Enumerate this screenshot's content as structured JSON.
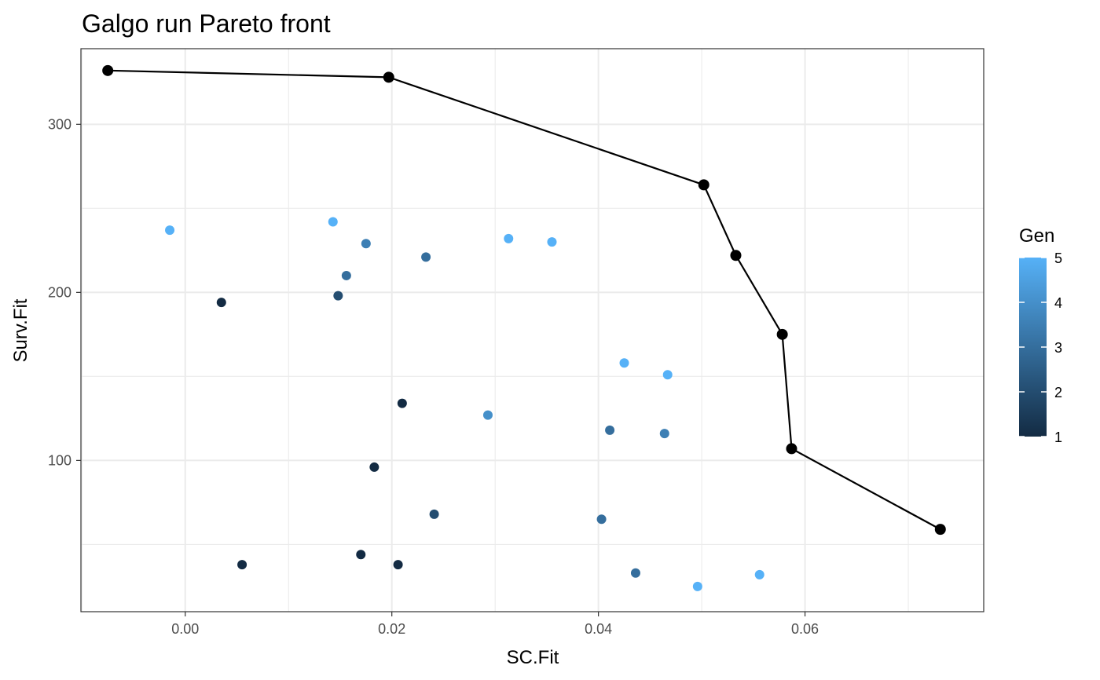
{
  "chart_data": {
    "type": "scatter",
    "title": "Galgo run Pareto front",
    "xlabel": "SC.Fit",
    "ylabel": "Surv.Fit",
    "xlim": [
      -0.0101,
      0.0773
    ],
    "ylim": [
      10,
      345
    ],
    "x_ticks": [
      0.0,
      0.02,
      0.04,
      0.06
    ],
    "x_tick_labels": [
      "0.00",
      "0.02",
      "0.04",
      "0.06"
    ],
    "y_ticks": [
      100,
      200,
      300
    ],
    "y_tick_labels": [
      "100",
      "200",
      "300"
    ],
    "grid": true,
    "legend": {
      "title": "Gen",
      "position": "right",
      "type": "colorbar",
      "range": [
        1,
        5
      ],
      "ticks": [
        "1",
        "2",
        "3",
        "4",
        "5"
      ],
      "low_color": "#132b43",
      "high_color": "#56b1f7"
    },
    "series": [
      {
        "type": "scatter",
        "points": [
          {
            "x": -0.0015,
            "y": 237,
            "gen": 5
          },
          {
            "x": 0.0035,
            "y": 194,
            "gen": 1
          },
          {
            "x": 0.0055,
            "y": 38,
            "gen": 1
          },
          {
            "x": 0.0143,
            "y": 242,
            "gen": 5
          },
          {
            "x": 0.0148,
            "y": 198,
            "gen": 2
          },
          {
            "x": 0.0156,
            "y": 210,
            "gen": 3
          },
          {
            "x": 0.017,
            "y": 44,
            "gen": 1
          },
          {
            "x": 0.0175,
            "y": 229,
            "gen": 3.5
          },
          {
            "x": 0.0183,
            "y": 96,
            "gen": 1
          },
          {
            "x": 0.0206,
            "y": 38,
            "gen": 1
          },
          {
            "x": 0.021,
            "y": 134,
            "gen": 1
          },
          {
            "x": 0.0233,
            "y": 221,
            "gen": 3
          },
          {
            "x": 0.0241,
            "y": 68,
            "gen": 2
          },
          {
            "x": 0.0293,
            "y": 127,
            "gen": 4
          },
          {
            "x": 0.0313,
            "y": 232,
            "gen": 5
          },
          {
            "x": 0.0355,
            "y": 230,
            "gen": 5
          },
          {
            "x": 0.0403,
            "y": 65,
            "gen": 3
          },
          {
            "x": 0.0411,
            "y": 118,
            "gen": 3
          },
          {
            "x": 0.0425,
            "y": 158,
            "gen": 5
          },
          {
            "x": 0.0436,
            "y": 33,
            "gen": 3
          },
          {
            "x": 0.0464,
            "y": 116,
            "gen": 3.5
          },
          {
            "x": 0.0467,
            "y": 151,
            "gen": 5
          },
          {
            "x": 0.0496,
            "y": 25,
            "gen": 5
          },
          {
            "x": 0.0556,
            "y": 32,
            "gen": 5
          }
        ]
      },
      {
        "type": "line",
        "color": "#000000",
        "points": [
          {
            "x": -0.0075,
            "y": 332
          },
          {
            "x": 0.0197,
            "y": 328
          },
          {
            "x": 0.0502,
            "y": 264
          },
          {
            "x": 0.0533,
            "y": 222
          },
          {
            "x": 0.0578,
            "y": 175
          },
          {
            "x": 0.0587,
            "y": 107
          },
          {
            "x": 0.0731,
            "y": 59
          }
        ]
      }
    ]
  }
}
